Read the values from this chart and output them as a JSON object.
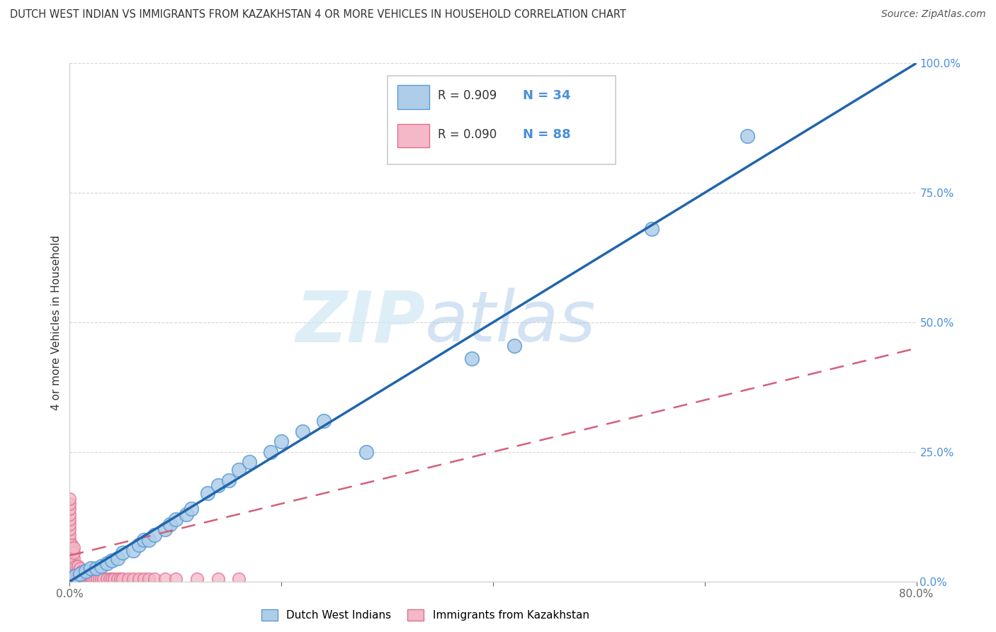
{
  "title": "DUTCH WEST INDIAN VS IMMIGRANTS FROM KAZAKHSTAN 4 OR MORE VEHICLES IN HOUSEHOLD CORRELATION CHART",
  "source": "Source: ZipAtlas.com",
  "ylabel": "4 or more Vehicles in Household",
  "xlim": [
    0.0,
    0.8
  ],
  "ylim": [
    0.0,
    1.0
  ],
  "xticks": [
    0.0,
    0.2,
    0.4,
    0.6,
    0.8
  ],
  "yticks": [
    0.0,
    0.25,
    0.5,
    0.75,
    1.0
  ],
  "xticklabels": [
    "0.0%",
    "",
    "",
    "",
    "80.0%"
  ],
  "yticklabels": [
    "0.0%",
    "25.0%",
    "50.0%",
    "75.0%",
    "100.0%"
  ],
  "blue_fill": "#aecde8",
  "blue_edge": "#5b9bd5",
  "pink_fill": "#f4b8c8",
  "pink_edge": "#e07090",
  "trendline_blue": "#2166ac",
  "trendline_pink": "#d4607a",
  "watermark_zip": "ZIP",
  "watermark_atlas": "atlas",
  "legend_r_blue": "R = 0.909",
  "legend_n_blue": "N = 34",
  "legend_r_pink": "R = 0.090",
  "legend_n_pink": "N = 88",
  "legend_label_blue": "Dutch West Indians",
  "legend_label_pink": "Immigrants from Kazakhstan",
  "blue_scatter_x": [
    0.005,
    0.01,
    0.015,
    0.02,
    0.025,
    0.03,
    0.035,
    0.04,
    0.045,
    0.05,
    0.06,
    0.065,
    0.07,
    0.075,
    0.08,
    0.09,
    0.095,
    0.1,
    0.11,
    0.115,
    0.13,
    0.14,
    0.15,
    0.16,
    0.17,
    0.19,
    0.2,
    0.22,
    0.24,
    0.28,
    0.38,
    0.42,
    0.55,
    0.64
  ],
  "blue_scatter_y": [
    0.01,
    0.015,
    0.02,
    0.025,
    0.025,
    0.03,
    0.035,
    0.04,
    0.045,
    0.055,
    0.06,
    0.07,
    0.08,
    0.08,
    0.09,
    0.1,
    0.11,
    0.12,
    0.13,
    0.14,
    0.17,
    0.185,
    0.195,
    0.215,
    0.23,
    0.25,
    0.27,
    0.29,
    0.31,
    0.25,
    0.43,
    0.455,
    0.68,
    0.86
  ],
  "pink_scatter_x": [
    0.0,
    0.0,
    0.0,
    0.0,
    0.0,
    0.0,
    0.0,
    0.0,
    0.0,
    0.0,
    0.0,
    0.0,
    0.0,
    0.0,
    0.0,
    0.0,
    0.0,
    0.0,
    0.0,
    0.0,
    0.002,
    0.002,
    0.002,
    0.002,
    0.002,
    0.002,
    0.002,
    0.002,
    0.002,
    0.002,
    0.004,
    0.004,
    0.004,
    0.004,
    0.004,
    0.004,
    0.004,
    0.004,
    0.004,
    0.004,
    0.006,
    0.006,
    0.006,
    0.006,
    0.006,
    0.008,
    0.008,
    0.008,
    0.008,
    0.01,
    0.01,
    0.01,
    0.01,
    0.012,
    0.012,
    0.012,
    0.014,
    0.014,
    0.016,
    0.016,
    0.018,
    0.018,
    0.02,
    0.02,
    0.022,
    0.024,
    0.026,
    0.028,
    0.03,
    0.032,
    0.035,
    0.038,
    0.04,
    0.042,
    0.045,
    0.048,
    0.05,
    0.055,
    0.06,
    0.065,
    0.07,
    0.075,
    0.08,
    0.09,
    0.1,
    0.12,
    0.14,
    0.16
  ],
  "pink_scatter_y": [
    0.005,
    0.01,
    0.015,
    0.02,
    0.025,
    0.03,
    0.035,
    0.04,
    0.05,
    0.06,
    0.07,
    0.08,
    0.09,
    0.1,
    0.11,
    0.12,
    0.13,
    0.14,
    0.15,
    0.16,
    0.005,
    0.01,
    0.015,
    0.02,
    0.025,
    0.03,
    0.04,
    0.05,
    0.06,
    0.07,
    0.005,
    0.01,
    0.015,
    0.02,
    0.025,
    0.03,
    0.035,
    0.045,
    0.055,
    0.065,
    0.005,
    0.01,
    0.015,
    0.02,
    0.03,
    0.005,
    0.01,
    0.02,
    0.03,
    0.005,
    0.01,
    0.015,
    0.025,
    0.005,
    0.01,
    0.02,
    0.005,
    0.015,
    0.005,
    0.01,
    0.005,
    0.01,
    0.005,
    0.01,
    0.005,
    0.005,
    0.005,
    0.005,
    0.005,
    0.005,
    0.005,
    0.005,
    0.005,
    0.005,
    0.005,
    0.005,
    0.005,
    0.005,
    0.005,
    0.005,
    0.005,
    0.005,
    0.005,
    0.005,
    0.005,
    0.005,
    0.005,
    0.005
  ],
  "blue_trend_x0": 0.0,
  "blue_trend_x1": 0.8,
  "blue_trend_y0": 0.0,
  "blue_trend_y1": 1.0,
  "pink_trend_x0": 0.0,
  "pink_trend_x1": 0.8,
  "pink_trend_y0": 0.05,
  "pink_trend_y1": 0.45,
  "background_color": "#ffffff",
  "grid_color": "#bbbbbb",
  "yticklabel_color": "#4a90d9",
  "xticklabel_color": "#666666"
}
